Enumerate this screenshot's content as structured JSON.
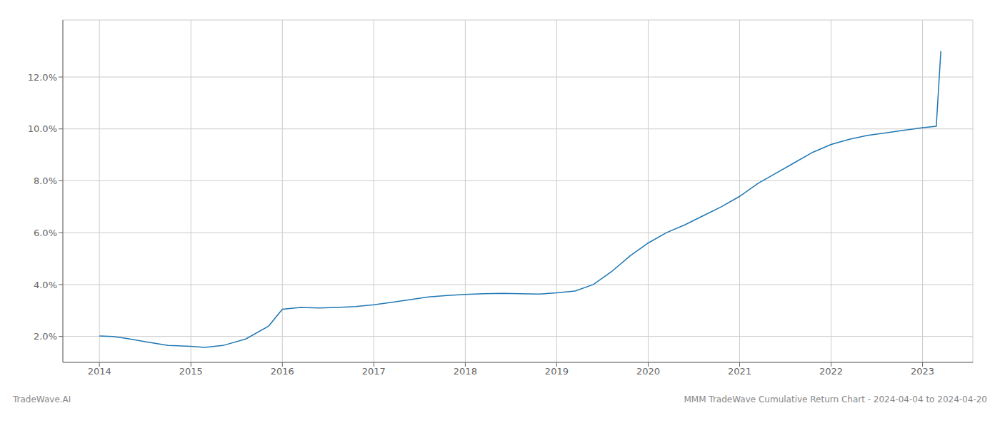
{
  "chart_data": {
    "type": "line",
    "title": "MMM TradeWave Cumulative Return Chart - 2024-04-04 to 2024-04-20",
    "annotations": [
      "TradeWave.AI"
    ],
    "x": [
      2014.0,
      2014.15,
      2014.3,
      2014.5,
      2014.75,
      2015.0,
      2015.15,
      2015.35,
      2015.6,
      2015.85,
      2016.0,
      2016.2,
      2016.4,
      2016.6,
      2016.8,
      2017.0,
      2017.2,
      2017.4,
      2017.6,
      2017.8,
      2018.0,
      2018.2,
      2018.4,
      2018.6,
      2018.8,
      2019.0,
      2019.2,
      2019.4,
      2019.6,
      2019.8,
      2020.0,
      2020.2,
      2020.4,
      2020.6,
      2020.8,
      2021.0,
      2021.2,
      2021.4,
      2021.6,
      2021.8,
      2022.0,
      2022.2,
      2022.4,
      2022.6,
      2022.8,
      2023.0,
      2023.15,
      2023.2
    ],
    "values": [
      2.02,
      2.0,
      1.92,
      1.8,
      1.65,
      1.62,
      1.58,
      1.65,
      1.9,
      2.4,
      3.05,
      3.12,
      3.1,
      3.12,
      3.15,
      3.22,
      3.32,
      3.42,
      3.52,
      3.58,
      3.62,
      3.65,
      3.66,
      3.65,
      3.63,
      3.68,
      3.75,
      4.0,
      4.5,
      5.1,
      5.6,
      6.0,
      6.3,
      6.65,
      7.0,
      7.4,
      7.9,
      8.3,
      8.7,
      9.1,
      9.4,
      9.6,
      9.75,
      9.85,
      9.95,
      10.05,
      10.1,
      13.0
    ],
    "color": "#1f77b4",
    "xlim": [
      2013.6,
      2023.55
    ],
    "ylim": [
      1.0,
      14.2
    ],
    "xticks": [
      2014,
      2015,
      2016,
      2017,
      2018,
      2019,
      2020,
      2021,
      2022,
      2023
    ],
    "yticks": [
      {
        "value": 2.0,
        "label": "2.0%"
      },
      {
        "value": 4.0,
        "label": "4.0%"
      },
      {
        "value": 6.0,
        "label": "6.0%"
      },
      {
        "value": 8.0,
        "label": "8.0%"
      },
      {
        "value": 10.0,
        "label": "10.0%"
      },
      {
        "value": 12.0,
        "label": "12.0%"
      }
    ],
    "grid": true
  }
}
